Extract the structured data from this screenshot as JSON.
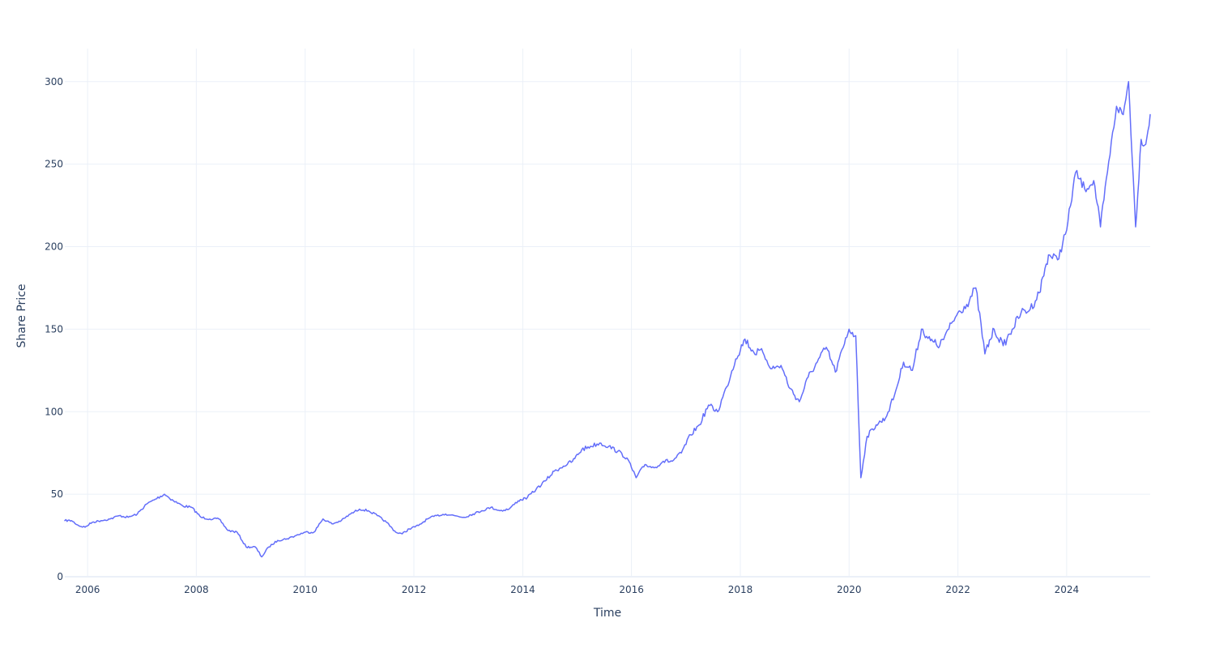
{
  "chart_data": {
    "type": "line",
    "title": "",
    "xlabel": "Time",
    "ylabel": "Share Price",
    "xlim": [
      "2005-08-01",
      "2025-07-15"
    ],
    "ylim": [
      0,
      320
    ],
    "grid": true,
    "legend": "none",
    "x_tick_labels": [
      "2006",
      "2008",
      "2010",
      "2012",
      "2014",
      "2016",
      "2018",
      "2020",
      "2022",
      "2024"
    ],
    "y_tick_labels": [
      "0",
      "50",
      "100",
      "150",
      "200",
      "250",
      "300"
    ],
    "y_tick_values": [
      0,
      50,
      100,
      150,
      200,
      250,
      300
    ],
    "series": [
      {
        "color": "#636efa",
        "points": [
          [
            "2005-08-01",
            34
          ],
          [
            "2005-09-15",
            34
          ],
          [
            "2005-11-01",
            31
          ],
          [
            "2005-12-15",
            30
          ],
          [
            "2006-02-01",
            33
          ],
          [
            "2006-04-01",
            34
          ],
          [
            "2006-06-01",
            35
          ],
          [
            "2006-08-01",
            37
          ],
          [
            "2006-10-01",
            36
          ],
          [
            "2006-12-01",
            38
          ],
          [
            "2007-02-01",
            44
          ],
          [
            "2007-04-01",
            47
          ],
          [
            "2007-06-01",
            50
          ],
          [
            "2007-08-01",
            46
          ],
          [
            "2007-10-01",
            43
          ],
          [
            "2007-12-01",
            42
          ],
          [
            "2008-02-01",
            36
          ],
          [
            "2008-04-01",
            35
          ],
          [
            "2008-06-01",
            35
          ],
          [
            "2008-08-01",
            28
          ],
          [
            "2008-10-01",
            27
          ],
          [
            "2008-12-01",
            18
          ],
          [
            "2009-02-01",
            18
          ],
          [
            "2009-03-15",
            12
          ],
          [
            "2009-05-01",
            18
          ],
          [
            "2009-07-01",
            22
          ],
          [
            "2009-09-01",
            23
          ],
          [
            "2009-11-01",
            25
          ],
          [
            "2010-01-01",
            27
          ],
          [
            "2010-03-01",
            27
          ],
          [
            "2010-05-01",
            35
          ],
          [
            "2010-07-01",
            32
          ],
          [
            "2010-09-01",
            34
          ],
          [
            "2010-11-01",
            38
          ],
          [
            "2011-01-01",
            41
          ],
          [
            "2011-03-01",
            40
          ],
          [
            "2011-05-01",
            37
          ],
          [
            "2011-07-01",
            33
          ],
          [
            "2011-09-01",
            27
          ],
          [
            "2011-10-15",
            26
          ],
          [
            "2011-12-01",
            29
          ],
          [
            "2012-02-01",
            31
          ],
          [
            "2012-04-01",
            35
          ],
          [
            "2012-06-01",
            37
          ],
          [
            "2012-08-01",
            38
          ],
          [
            "2012-10-01",
            37
          ],
          [
            "2012-12-01",
            36
          ],
          [
            "2013-02-01",
            38
          ],
          [
            "2013-04-01",
            40
          ],
          [
            "2013-06-01",
            42
          ],
          [
            "2013-08-01",
            40
          ],
          [
            "2013-10-01",
            41
          ],
          [
            "2013-12-01",
            46
          ],
          [
            "2014-02-01",
            48
          ],
          [
            "2014-04-01",
            53
          ],
          [
            "2014-06-01",
            58
          ],
          [
            "2014-08-01",
            64
          ],
          [
            "2014-10-01",
            67
          ],
          [
            "2014-12-01",
            70
          ],
          [
            "2015-02-01",
            77
          ],
          [
            "2015-04-01",
            79
          ],
          [
            "2015-06-01",
            81
          ],
          [
            "2015-08-01",
            79
          ],
          [
            "2015-10-01",
            76
          ],
          [
            "2015-12-01",
            72
          ],
          [
            "2016-02-01",
            60
          ],
          [
            "2016-04-01",
            68
          ],
          [
            "2016-06-01",
            66
          ],
          [
            "2016-08-01",
            70
          ],
          [
            "2016-10-01",
            70
          ],
          [
            "2016-12-01",
            75
          ],
          [
            "2017-02-01",
            86
          ],
          [
            "2017-04-01",
            92
          ],
          [
            "2017-06-01",
            104
          ],
          [
            "2017-08-01",
            100
          ],
          [
            "2017-10-01",
            115
          ],
          [
            "2017-12-01",
            132
          ],
          [
            "2018-02-01",
            144
          ],
          [
            "2018-04-01",
            136
          ],
          [
            "2018-06-01",
            136
          ],
          [
            "2018-08-01",
            126
          ],
          [
            "2018-10-01",
            128
          ],
          [
            "2018-12-01",
            114
          ],
          [
            "2019-02-01",
            106
          ],
          [
            "2019-04-01",
            121
          ],
          [
            "2019-06-01",
            130
          ],
          [
            "2019-08-01",
            139
          ],
          [
            "2019-10-01",
            124
          ],
          [
            "2019-12-01",
            141
          ],
          [
            "2020-01-01",
            150
          ],
          [
            "2020-02-15",
            146
          ],
          [
            "2020-03-20",
            60
          ],
          [
            "2020-05-01",
            85
          ],
          [
            "2020-07-01",
            92
          ],
          [
            "2020-09-01",
            96
          ],
          [
            "2020-11-01",
            110
          ],
          [
            "2021-01-01",
            130
          ],
          [
            "2021-03-01",
            125
          ],
          [
            "2021-05-01",
            150
          ],
          [
            "2021-07-01",
            143
          ],
          [
            "2021-09-01",
            140
          ],
          [
            "2021-11-01",
            150
          ],
          [
            "2022-01-01",
            160
          ],
          [
            "2022-03-01",
            165
          ],
          [
            "2022-05-01",
            175
          ],
          [
            "2022-07-01",
            135
          ],
          [
            "2022-09-01",
            150
          ],
          [
            "2022-11-01",
            140
          ],
          [
            "2023-01-01",
            150
          ],
          [
            "2023-03-01",
            160
          ],
          [
            "2023-05-01",
            162
          ],
          [
            "2023-07-01",
            172
          ],
          [
            "2023-09-01",
            195
          ],
          [
            "2023-11-01",
            192
          ],
          [
            "2024-01-01",
            210
          ],
          [
            "2024-03-01",
            245
          ],
          [
            "2024-05-01",
            235
          ],
          [
            "2024-07-01",
            240
          ],
          [
            "2024-08-15",
            212
          ],
          [
            "2024-10-01",
            245
          ],
          [
            "2024-12-01",
            285
          ],
          [
            "2025-01-15",
            280
          ],
          [
            "2025-02-20",
            300
          ],
          [
            "2025-04-08",
            212
          ],
          [
            "2025-05-15",
            265
          ],
          [
            "2025-06-15",
            262
          ],
          [
            "2025-07-15",
            280
          ]
        ]
      }
    ]
  }
}
